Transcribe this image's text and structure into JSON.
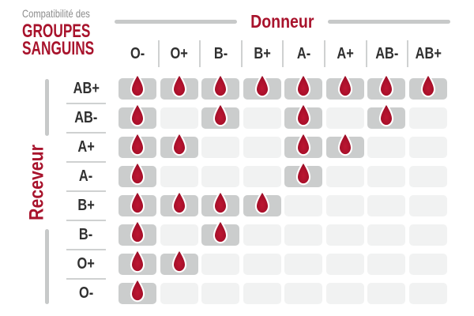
{
  "title": {
    "eyebrow": "Compatibilité des",
    "line1": "GROUPES",
    "line2": "SANGUINS"
  },
  "icons": {
    "compatible_marker": "blood-drop-icon"
  },
  "colors": {
    "crimson": "#a8132c",
    "label_dark": "#303030",
    "eyebrow_gray": "#8c8c8c",
    "axis_line_gray": "#c7c9c9",
    "divider_gray": "#cfd1d1",
    "cell_compatible": "#cbcdcd",
    "cell_empty": "#f1f2f2",
    "drop_red": "#a50f29",
    "drop_stroke": "#ffffff"
  },
  "chart_data": {
    "type": "heatmap",
    "title": "Compatibilité des GROUPES SANGUINS",
    "x_axis_label": "Donneur",
    "y_axis_label": "Receveur",
    "columns": [
      "O-",
      "O+",
      "B-",
      "B+",
      "A-",
      "A+",
      "AB-",
      "AB+"
    ],
    "rows": [
      "AB+",
      "AB-",
      "A+",
      "A-",
      "B+",
      "B-",
      "O+",
      "O-"
    ],
    "matrix": [
      [
        1,
        1,
        1,
        1,
        1,
        1,
        1,
        1
      ],
      [
        1,
        0,
        1,
        0,
        1,
        0,
        1,
        0
      ],
      [
        1,
        1,
        0,
        0,
        1,
        1,
        0,
        0
      ],
      [
        1,
        0,
        0,
        0,
        1,
        0,
        0,
        0
      ],
      [
        1,
        1,
        1,
        1,
        0,
        0,
        0,
        0
      ],
      [
        1,
        0,
        1,
        0,
        0,
        0,
        0,
        0
      ],
      [
        1,
        1,
        0,
        0,
        0,
        0,
        0,
        0
      ],
      [
        1,
        0,
        0,
        0,
        0,
        0,
        0,
        0
      ]
    ],
    "marker_meaning": "compatible",
    "legend_position": "none",
    "grid": "rounded-cells"
  }
}
